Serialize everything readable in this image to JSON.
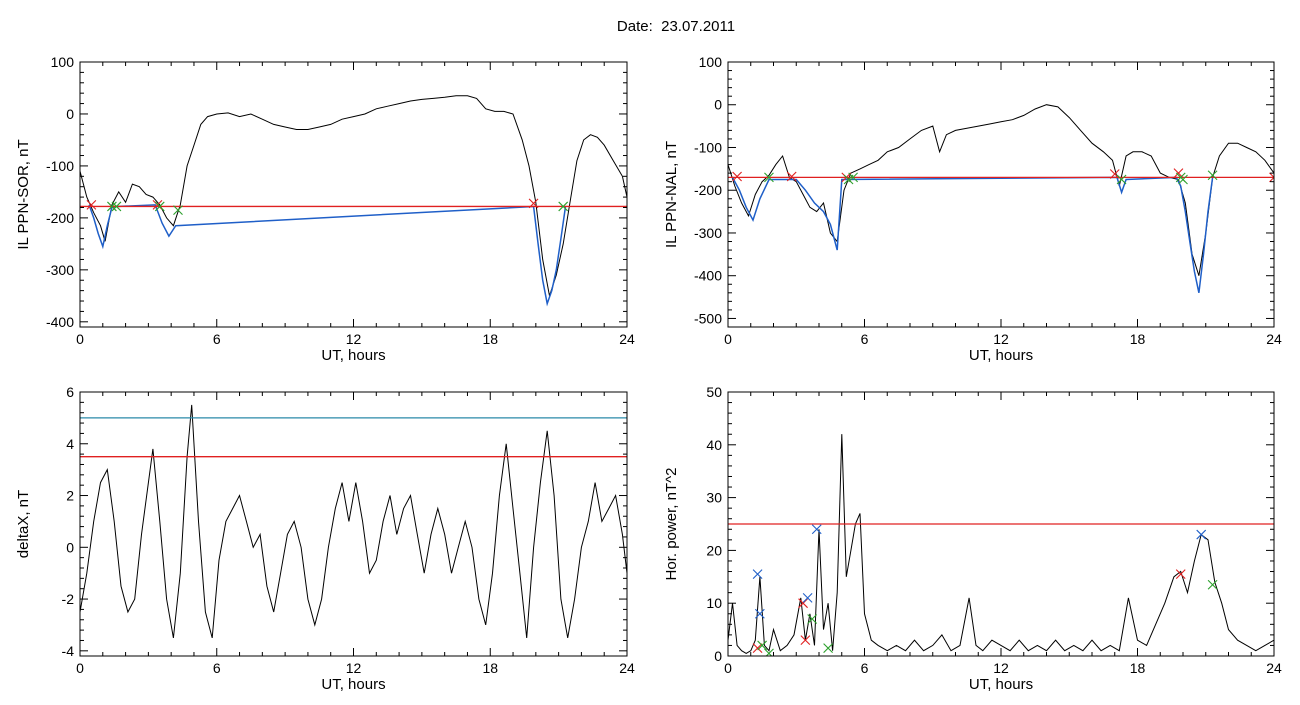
{
  "figure": {
    "title": "Date:  23.07.2011"
  },
  "colors": {
    "signal": "#000000",
    "threshold": "#e02020",
    "highlight": "#1f5fc8",
    "cyan_threshold": "#2a8aa8",
    "marker_start": "#e02020",
    "marker_end": "#2ca02c",
    "marker_peak": "#1f5fc8"
  },
  "chart_data": [
    {
      "id": "sor",
      "type": "line",
      "title": "",
      "xlabel": "UT, hours",
      "ylabel": "IL PPN-SOR, nT",
      "xlim": [
        0,
        24
      ],
      "ylim": [
        -410,
        100
      ],
      "xticks": [
        0,
        6,
        12,
        18,
        24
      ],
      "yticks": [
        -400,
        -300,
        -200,
        -100,
        0,
        100
      ],
      "grid": false,
      "series": [
        {
          "role": "signal",
          "color": "#000000",
          "x": [
            0,
            0.3,
            0.6,
            0.9,
            1.1,
            1.4,
            1.7,
            2.0,
            2.3,
            2.6,
            2.9,
            3.2,
            3.5,
            3.8,
            4.1,
            4.4,
            4.7,
            5.0,
            5.3,
            5.6,
            6.0,
            6.5,
            7.0,
            7.5,
            8.0,
            8.5,
            9.0,
            9.5,
            10.0,
            10.5,
            11.0,
            11.5,
            12.0,
            12.5,
            13.0,
            13.5,
            14.0,
            14.5,
            15.0,
            15.5,
            16.0,
            16.5,
            17.0,
            17.4,
            17.8,
            18.2,
            18.6,
            19.0,
            19.4,
            19.7,
            20.0,
            20.3,
            20.6,
            20.9,
            21.2,
            21.5,
            21.8,
            22.1,
            22.4,
            22.7,
            23.0,
            23.4,
            23.8,
            24.0
          ],
          "y": [
            -110,
            -160,
            -190,
            -215,
            -245,
            -175,
            -150,
            -170,
            -135,
            -140,
            -155,
            -160,
            -175,
            -200,
            -215,
            -175,
            -100,
            -60,
            -20,
            -5,
            0,
            2,
            -5,
            0,
            -10,
            -20,
            -25,
            -30,
            -30,
            -25,
            -20,
            -10,
            -5,
            0,
            10,
            15,
            20,
            25,
            28,
            30,
            32,
            35,
            35,
            30,
            10,
            5,
            5,
            0,
            -50,
            -100,
            -170,
            -280,
            -350,
            -310,
            -250,
            -170,
            -90,
            -50,
            -40,
            -45,
            -60,
            -90,
            -120,
            -160
          ]
        },
        {
          "role": "highlight",
          "color": "#1f5fc8",
          "x": [
            0.4,
            0.6,
            0.8,
            1.0,
            1.2,
            1.4,
            1.6,
            3.3,
            3.6,
            3.9,
            4.2,
            19.9,
            20.1,
            20.3,
            20.5,
            20.7,
            20.9,
            21.1,
            21.3
          ],
          "y": [
            -175,
            -200,
            -230,
            -255,
            -215,
            -180,
            -178,
            -175,
            -210,
            -235,
            -215,
            -178,
            -250,
            -320,
            -365,
            -340,
            -300,
            -240,
            -178
          ]
        },
        {
          "role": "threshold",
          "color": "#e02020",
          "y_const": -178
        }
      ],
      "markers": [
        {
          "x": 0.5,
          "y": -175,
          "color": "#e02020"
        },
        {
          "x": 1.4,
          "y": -178,
          "color": "#2ca02c"
        },
        {
          "x": 1.6,
          "y": -178,
          "color": "#2ca02c"
        },
        {
          "x": 3.4,
          "y": -175,
          "color": "#e02020"
        },
        {
          "x": 3.5,
          "y": -178,
          "color": "#2ca02c"
        },
        {
          "x": 4.3,
          "y": -185,
          "color": "#2ca02c"
        },
        {
          "x": 19.9,
          "y": -172,
          "color": "#e02020"
        },
        {
          "x": 21.2,
          "y": -178,
          "color": "#2ca02c"
        }
      ]
    },
    {
      "id": "nal",
      "type": "line",
      "title": "",
      "xlabel": "UT, hours",
      "ylabel": "IL PPN-NAL, nT",
      "xlim": [
        0,
        24
      ],
      "ylim": [
        -520,
        100
      ],
      "xticks": [
        0,
        6,
        12,
        18,
        24
      ],
      "yticks": [
        -500,
        -400,
        -300,
        -200,
        -100,
        0,
        100
      ],
      "grid": false,
      "series": [
        {
          "role": "signal",
          "color": "#000000",
          "x": [
            0,
            0.3,
            0.6,
            0.9,
            1.2,
            1.5,
            1.8,
            2.1,
            2.4,
            2.7,
            3.0,
            3.3,
            3.6,
            3.9,
            4.2,
            4.5,
            4.8,
            5.1,
            5.4,
            5.8,
            6.2,
            6.6,
            7.0,
            7.5,
            8.0,
            8.5,
            9.0,
            9.3,
            9.6,
            10.0,
            10.5,
            11.0,
            11.5,
            12.0,
            12.5,
            13.0,
            13.5,
            14.0,
            14.5,
            15.0,
            15.5,
            16.0,
            16.5,
            16.9,
            17.2,
            17.5,
            17.8,
            18.2,
            18.6,
            19.0,
            19.4,
            19.8,
            20.1,
            20.4,
            20.7,
            21.0,
            21.3,
            21.6,
            22.0,
            22.4,
            22.8,
            23.2,
            23.6,
            24.0
          ],
          "y": [
            -140,
            -190,
            -230,
            -260,
            -210,
            -180,
            -165,
            -140,
            -120,
            -170,
            -180,
            -210,
            -240,
            -250,
            -230,
            -300,
            -320,
            -200,
            -160,
            -150,
            -140,
            -130,
            -110,
            -100,
            -80,
            -60,
            -50,
            -110,
            -70,
            -60,
            -55,
            -50,
            -45,
            -40,
            -35,
            -25,
            -10,
            0,
            -5,
            -30,
            -60,
            -90,
            -110,
            -130,
            -190,
            -120,
            -110,
            -110,
            -120,
            -160,
            -170,
            -175,
            -230,
            -350,
            -400,
            -300,
            -170,
            -120,
            -90,
            -90,
            -100,
            -110,
            -130,
            -160
          ]
        },
        {
          "role": "highlight",
          "color": "#1f5fc8",
          "x": [
            0.2,
            0.5,
            0.8,
            1.1,
            1.4,
            1.8,
            3.0,
            3.4,
            3.8,
            4.2,
            4.5,
            4.8,
            5.0,
            17.1,
            17.3,
            17.5,
            19.7,
            19.9,
            20.1,
            20.3,
            20.5,
            20.7,
            20.9,
            21.1,
            21.3
          ],
          "y": [
            -170,
            -200,
            -240,
            -270,
            -220,
            -175,
            -175,
            -200,
            -230,
            -250,
            -280,
            -340,
            -175,
            -170,
            -205,
            -175,
            -170,
            -190,
            -250,
            -320,
            -390,
            -440,
            -350,
            -250,
            -170
          ]
        },
        {
          "role": "threshold",
          "color": "#e02020",
          "y_const": -170
        }
      ],
      "markers": [
        {
          "x": 0.4,
          "y": -168,
          "color": "#e02020"
        },
        {
          "x": 1.8,
          "y": -170,
          "color": "#2ca02c"
        },
        {
          "x": 2.8,
          "y": -168,
          "color": "#e02020"
        },
        {
          "x": 5.2,
          "y": -170,
          "color": "#e02020"
        },
        {
          "x": 5.5,
          "y": -170,
          "color": "#2ca02c"
        },
        {
          "x": 5.3,
          "y": -175,
          "color": "#2ca02c"
        },
        {
          "x": 17.0,
          "y": -162,
          "color": "#e02020"
        },
        {
          "x": 17.3,
          "y": -175,
          "color": "#2ca02c"
        },
        {
          "x": 19.8,
          "y": -160,
          "color": "#e02020"
        },
        {
          "x": 19.9,
          "y": -170,
          "color": "#2ca02c"
        },
        {
          "x": 20.0,
          "y": -175,
          "color": "#2ca02c"
        },
        {
          "x": 21.3,
          "y": -165,
          "color": "#2ca02c"
        },
        {
          "x": 24.0,
          "y": -170,
          "color": "#e02020"
        }
      ]
    },
    {
      "id": "deltax",
      "type": "line",
      "title": "",
      "xlabel": "UT, hours",
      "ylabel": "deltaX, nT",
      "xlim": [
        0,
        24
      ],
      "ylim": [
        -4.2,
        6
      ],
      "xticks": [
        0,
        6,
        12,
        18,
        24
      ],
      "yticks": [
        -4,
        -2,
        0,
        2,
        4,
        6
      ],
      "grid": false,
      "series": [
        {
          "role": "signal",
          "color": "#000000",
          "x": [
            0,
            0.3,
            0.6,
            0.9,
            1.2,
            1.5,
            1.8,
            2.1,
            2.4,
            2.7,
            3.0,
            3.2,
            3.5,
            3.8,
            4.1,
            4.4,
            4.7,
            4.9,
            5.2,
            5.5,
            5.8,
            6.1,
            6.4,
            6.7,
            7.0,
            7.3,
            7.6,
            7.9,
            8.2,
            8.5,
            8.8,
            9.1,
            9.4,
            9.7,
            10.0,
            10.3,
            10.6,
            10.9,
            11.2,
            11.5,
            11.8,
            12.1,
            12.4,
            12.7,
            13.0,
            13.3,
            13.6,
            13.9,
            14.2,
            14.5,
            14.8,
            15.1,
            15.4,
            15.7,
            16.0,
            16.3,
            16.6,
            16.9,
            17.2,
            17.5,
            17.8,
            18.1,
            18.4,
            18.7,
            19.0,
            19.3,
            19.6,
            19.9,
            20.2,
            20.5,
            20.8,
            21.1,
            21.4,
            21.7,
            22.0,
            22.3,
            22.6,
            22.9,
            23.2,
            23.5,
            23.8,
            24.0
          ],
          "y": [
            -2.5,
            -1.0,
            1.0,
            2.5,
            3.0,
            1.0,
            -1.5,
            -2.5,
            -2.0,
            0.5,
            2.5,
            3.8,
            1.0,
            -2.0,
            -3.5,
            -1.0,
            3.5,
            5.5,
            1.0,
            -2.5,
            -3.5,
            -0.5,
            1.0,
            1.5,
            2.0,
            1.0,
            0.0,
            0.5,
            -1.5,
            -2.5,
            -1.0,
            0.5,
            1.0,
            0.0,
            -2.0,
            -3.0,
            -2.0,
            0.0,
            1.5,
            2.5,
            1.0,
            2.5,
            1.0,
            -1.0,
            -0.5,
            1.0,
            2.0,
            0.5,
            1.5,
            2.0,
            0.5,
            -1.0,
            0.5,
            1.5,
            0.5,
            -1.0,
            0.0,
            1.0,
            0.0,
            -2.0,
            -3.0,
            -1.0,
            2.0,
            4.0,
            1.5,
            -1.0,
            -3.5,
            0.0,
            2.5,
            4.5,
            2.0,
            -2.0,
            -3.5,
            -2.0,
            0.0,
            1.0,
            2.5,
            1.0,
            1.5,
            2.0,
            0.5,
            -1.0
          ]
        },
        {
          "role": "threshold",
          "color": "#e02020",
          "y_const": 3.5
        },
        {
          "role": "threshold",
          "color": "#2a8aa8",
          "y_const": 5.0
        }
      ],
      "markers": []
    },
    {
      "id": "hpower",
      "type": "line",
      "title": "",
      "xlabel": "UT, hours",
      "ylabel": "Hor. power, nT^2",
      "xlim": [
        0,
        24
      ],
      "ylim": [
        0,
        50
      ],
      "xticks": [
        0,
        6,
        12,
        18,
        24
      ],
      "yticks": [
        0,
        10,
        20,
        30,
        40,
        50
      ],
      "grid": false,
      "series": [
        {
          "role": "signal",
          "color": "#000000",
          "x": [
            0,
            0.2,
            0.4,
            0.6,
            0.8,
            1.0,
            1.2,
            1.4,
            1.6,
            1.8,
            2.0,
            2.3,
            2.6,
            2.9,
            3.2,
            3.4,
            3.6,
            3.8,
            4.0,
            4.2,
            4.4,
            4.6,
            4.8,
            5.0,
            5.2,
            5.4,
            5.6,
            5.8,
            6.0,
            6.3,
            6.6,
            7.0,
            7.4,
            7.8,
            8.2,
            8.6,
            9.0,
            9.4,
            9.8,
            10.2,
            10.6,
            10.9,
            11.2,
            11.6,
            12.0,
            12.4,
            12.8,
            13.2,
            13.6,
            14.0,
            14.4,
            14.8,
            15.2,
            15.6,
            16.0,
            16.4,
            16.8,
            17.2,
            17.6,
            18.0,
            18.4,
            18.8,
            19.2,
            19.6,
            19.9,
            20.2,
            20.5,
            20.8,
            21.1,
            21.4,
            21.7,
            22.0,
            22.4,
            22.8,
            23.2,
            23.6,
            24.0
          ],
          "y": [
            3,
            10,
            2,
            1,
            0.5,
            1,
            3,
            15,
            2,
            1,
            5,
            1,
            2,
            4,
            11,
            3,
            8,
            2,
            24,
            5,
            10,
            1,
            12,
            42,
            15,
            20,
            25,
            27,
            8,
            3,
            2,
            1,
            2,
            1,
            3,
            1,
            2,
            4,
            1,
            2,
            11,
            2,
            1,
            3,
            2,
            1,
            3,
            1,
            2,
            1,
            3,
            1,
            2,
            1,
            3,
            1,
            2,
            1,
            11,
            3,
            2,
            6,
            10,
            15,
            16,
            12,
            18,
            23,
            22,
            14,
            10,
            5,
            3,
            2,
            1,
            2,
            3
          ]
        },
        {
          "role": "threshold",
          "color": "#e02020",
          "y_const": 25
        }
      ],
      "markers": [
        {
          "x": 1.3,
          "y": 15.5,
          "color": "#1f5fc8"
        },
        {
          "x": 1.4,
          "y": 8,
          "color": "#1f5fc8"
        },
        {
          "x": 1.3,
          "y": 1.5,
          "color": "#e02020"
        },
        {
          "x": 1.5,
          "y": 2,
          "color": "#2ca02c"
        },
        {
          "x": 1.8,
          "y": 0.5,
          "color": "#2ca02c"
        },
        {
          "x": 3.3,
          "y": 10,
          "color": "#e02020"
        },
        {
          "x": 3.5,
          "y": 11,
          "color": "#1f5fc8"
        },
        {
          "x": 3.4,
          "y": 3,
          "color": "#e02020"
        },
        {
          "x": 3.7,
          "y": 7,
          "color": "#2ca02c"
        },
        {
          "x": 3.9,
          "y": 24,
          "color": "#1f5fc8"
        },
        {
          "x": 4.4,
          "y": 1.5,
          "color": "#2ca02c"
        },
        {
          "x": 19.9,
          "y": 15.5,
          "color": "#e02020"
        },
        {
          "x": 20.8,
          "y": 23,
          "color": "#1f5fc8"
        },
        {
          "x": 21.3,
          "y": 13.5,
          "color": "#2ca02c"
        }
      ]
    }
  ]
}
